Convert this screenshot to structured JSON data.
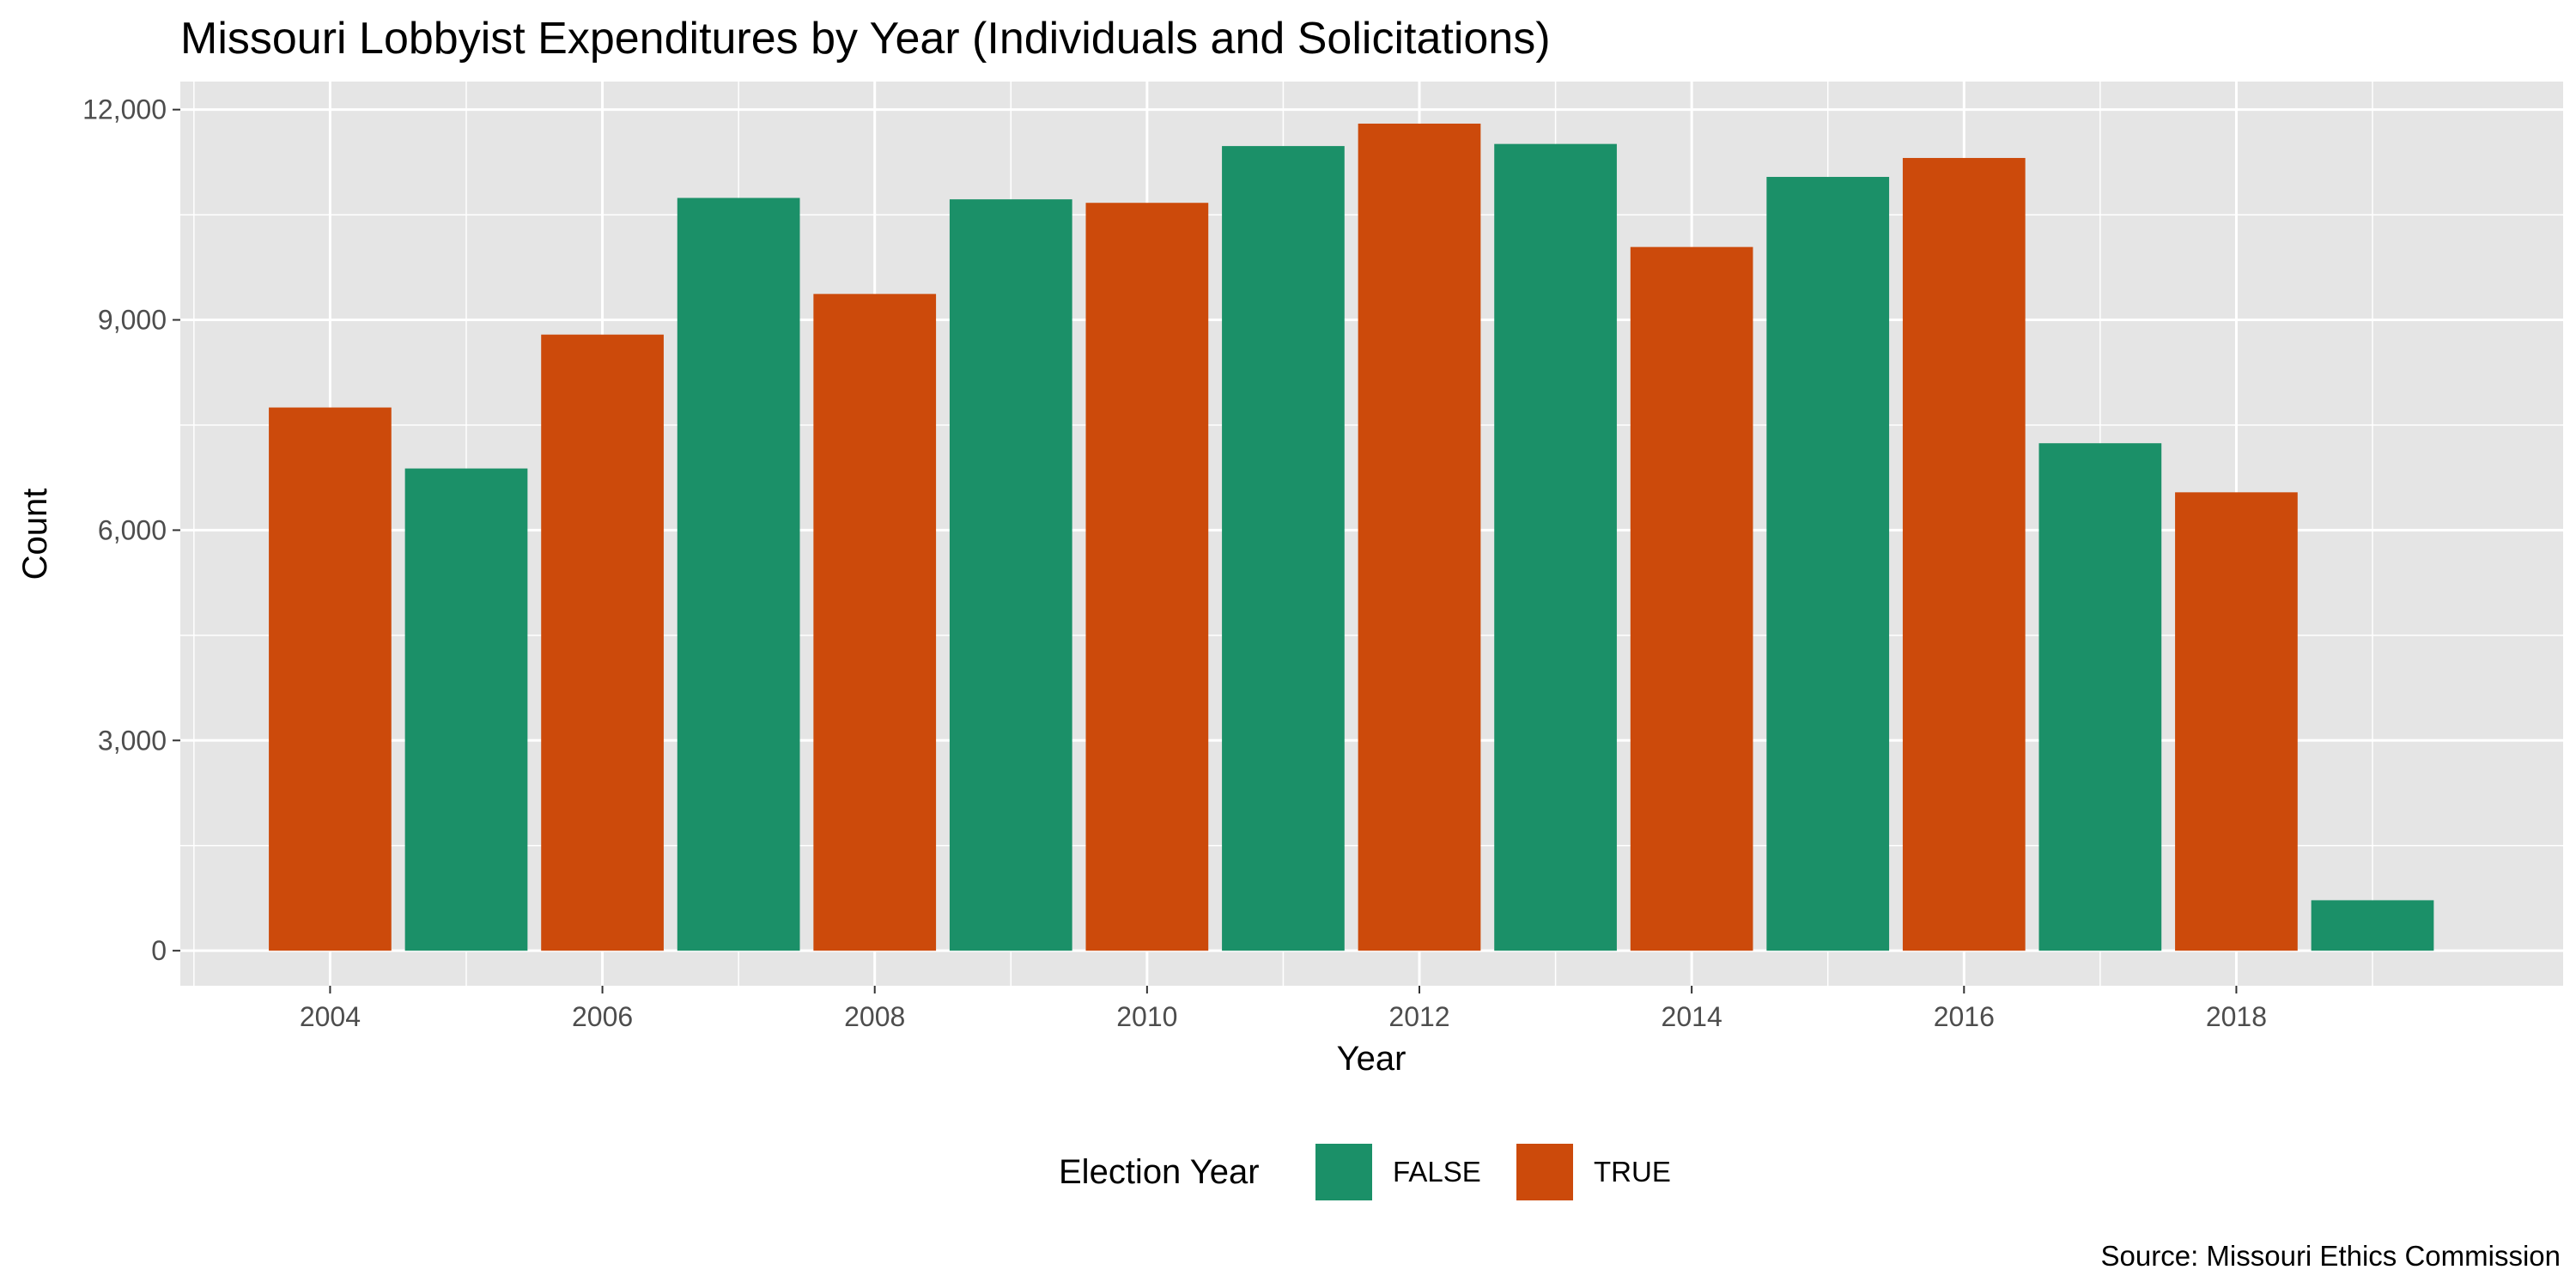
{
  "chart_data": {
    "type": "bar",
    "title": "Missouri Lobbyist Expenditures by Year (Individuals and Solicitations)",
    "xlabel": "Year",
    "ylabel": "Count",
    "caption": "Source: Missouri Ethics Commission",
    "x_ticks": [
      "2004",
      "2006",
      "2008",
      "2010",
      "2012",
      "2014",
      "2016",
      "2018"
    ],
    "y_ticks": [
      "0",
      "3,000",
      "6,000",
      "9,000",
      "12,000"
    ],
    "xlim": [
      2002.9,
      2020.4
    ],
    "ylim": [
      -500,
      12400
    ],
    "grid": true,
    "legend": {
      "title": "Election Year",
      "position": "bottom",
      "entries": [
        {
          "label": "FALSE",
          "color": "#1b9068"
        },
        {
          "label": "TRUE",
          "color": "#cc4a0b"
        }
      ]
    },
    "colors": {
      "FALSE": "#1b9068",
      "TRUE": "#cc4a0b",
      "panel": "#e5e5e5",
      "grid": "#ffffff"
    },
    "categories": [
      "2004",
      "2005",
      "2006",
      "2007",
      "2008",
      "2009",
      "2010",
      "2011",
      "2012",
      "2013",
      "2014",
      "2015",
      "2016",
      "2017",
      "2018",
      "2019"
    ],
    "values": [
      7750,
      6880,
      8790,
      10740,
      9370,
      10720,
      10670,
      11480,
      11800,
      11510,
      10040,
      11040,
      11310,
      7240,
      6540,
      720
    ],
    "groups": [
      "TRUE",
      "FALSE",
      "TRUE",
      "FALSE",
      "TRUE",
      "FALSE",
      "TRUE",
      "FALSE",
      "TRUE",
      "FALSE",
      "TRUE",
      "FALSE",
      "TRUE",
      "FALSE",
      "TRUE",
      "FALSE"
    ]
  }
}
